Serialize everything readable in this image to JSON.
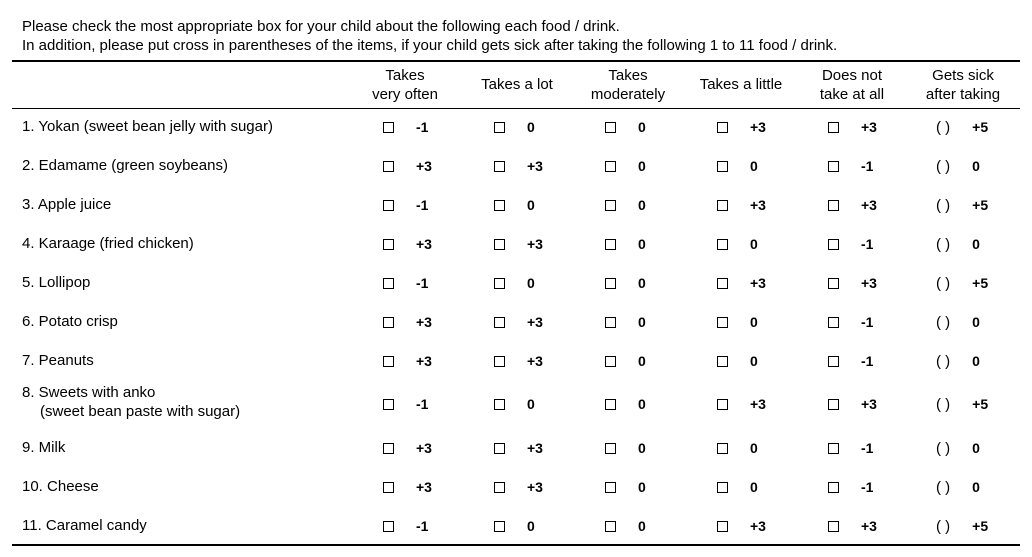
{
  "intro": {
    "line1": "Please check the most appropriate box for your child about the following each food / drink.",
    "line2": "In addition, please put cross in parentheses of the items, if your child gets sick after taking the following 1 to 11 food / drink."
  },
  "columns": [
    {
      "line1": "Takes",
      "line2": "very often"
    },
    {
      "line1": "Takes a lot",
      "line2": ""
    },
    {
      "line1": "Takes",
      "line2": "moderately"
    },
    {
      "line1": "Takes a little",
      "line2": ""
    },
    {
      "line1": "Does not",
      "line2": "take at all"
    },
    {
      "line1": "Gets sick",
      "line2": "after taking"
    }
  ],
  "paren_symbol": "(  )",
  "rows": [
    {
      "label1": "1. Yokan (sweet bean jelly  with sugar)",
      "label2": "",
      "scores": [
        "-1",
        "0",
        "0",
        "+3",
        "+3",
        "+5"
      ]
    },
    {
      "label1": "2. Edamame (green soybeans)",
      "label2": "",
      "scores": [
        "+3",
        "+3",
        "0",
        "0",
        "-1",
        "0"
      ]
    },
    {
      "label1": "3. Apple juice",
      "label2": "",
      "scores": [
        "-1",
        "0",
        "0",
        "+3",
        "+3",
        "+5"
      ]
    },
    {
      "label1": "4. Karaage (fried chicken)",
      "label2": "",
      "scores": [
        "+3",
        "+3",
        "0",
        "0",
        "-1",
        "0"
      ]
    },
    {
      "label1": "5. Lollipop",
      "label2": "",
      "scores": [
        "-1",
        "0",
        "0",
        "+3",
        "+3",
        "+5"
      ]
    },
    {
      "label1": "6. Potato crisp",
      "label2": "",
      "scores": [
        "+3",
        "+3",
        "0",
        "0",
        "-1",
        "0"
      ]
    },
    {
      "label1": "7. Peanuts",
      "label2": "",
      "scores": [
        "+3",
        "+3",
        "0",
        "0",
        "-1",
        "0"
      ]
    },
    {
      "label1": "8. Sweets with anko",
      "label2": "(sweet bean paste with sugar)",
      "scores": [
        "-1",
        "0",
        "0",
        "+3",
        "+3",
        "+5"
      ]
    },
    {
      "label1": "9. Milk",
      "label2": "",
      "scores": [
        "+3",
        "+3",
        "0",
        "0",
        "-1",
        "0"
      ]
    },
    {
      "label1": "10. Cheese",
      "label2": "",
      "scores": [
        "+3",
        "+3",
        "0",
        "0",
        "-1",
        "0"
      ]
    },
    {
      "label1": "11. Caramel candy",
      "label2": "",
      "scores": [
        "-1",
        "0",
        "0",
        "+3",
        "+3",
        "+5"
      ]
    }
  ]
}
